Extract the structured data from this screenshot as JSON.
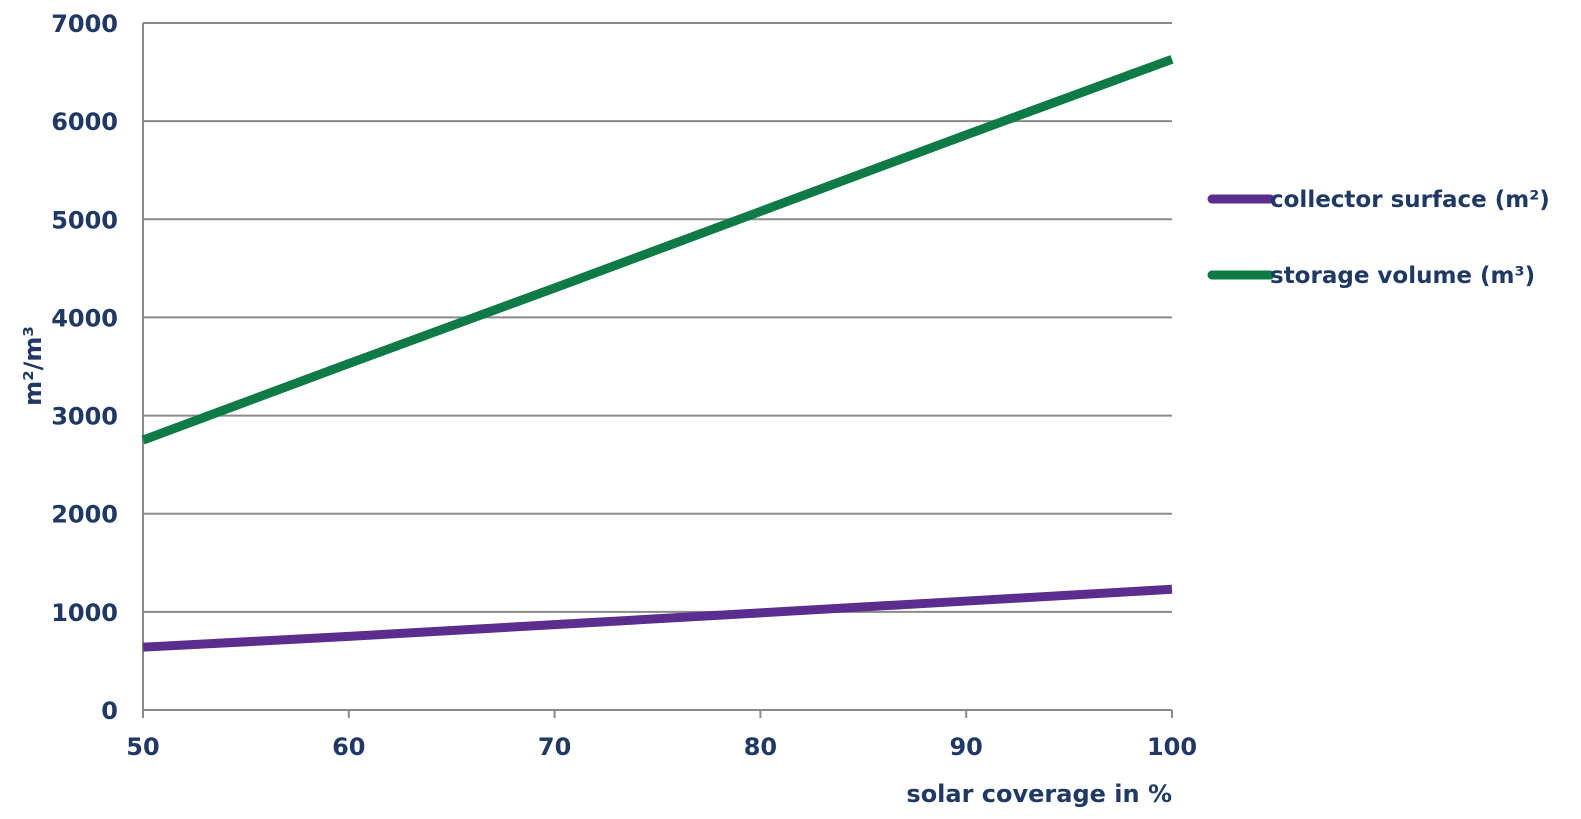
{
  "chart_data": {
    "type": "line",
    "title": "",
    "xlabel": "solar coverage in %",
    "ylabel": "m²/m³",
    "xlim": [
      50,
      100
    ],
    "ylim": [
      0,
      7000
    ],
    "x_ticks": [
      50,
      60,
      70,
      80,
      90,
      100
    ],
    "y_ticks": [
      0,
      1000,
      2000,
      3000,
      4000,
      5000,
      6000,
      7000
    ],
    "grid": true,
    "legend_position": "right",
    "series": [
      {
        "name": "collector surface (m²)",
        "color": "#5b2d8e",
        "x": [
          50,
          60,
          70,
          80,
          90,
          100
        ],
        "y": [
          640,
          750,
          870,
          990,
          1110,
          1230
        ]
      },
      {
        "name": "storage volume (m³)",
        "color": "#0e7a45",
        "x": [
          50,
          60,
          70,
          80,
          90,
          100
        ],
        "y": [
          2750,
          3530,
          4300,
          5080,
          5860,
          6630
        ]
      }
    ]
  }
}
